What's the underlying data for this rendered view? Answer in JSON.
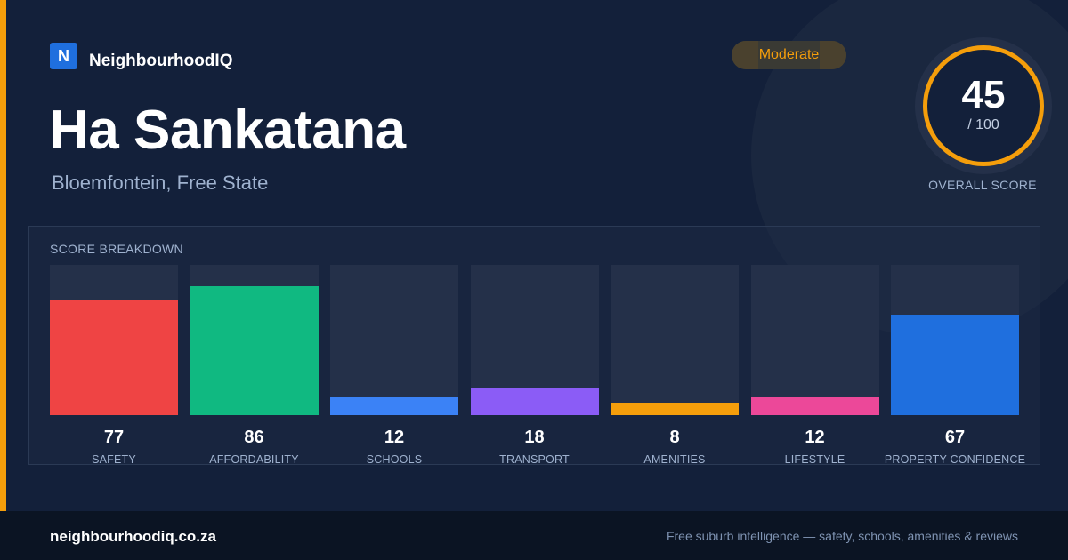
{
  "brand": {
    "logo_letter": "N",
    "name": "NeighbourhoodIQ"
  },
  "suburb": {
    "name": "Ha Sankatana",
    "location": "Bloemfontein, Free State"
  },
  "rating": {
    "label": "Moderate"
  },
  "overall_score": {
    "value": "45",
    "max": "/ 100",
    "caption": "OVERALL SCORE"
  },
  "breakdown": {
    "heading": "SCORE BREAKDOWN",
    "categories": [
      {
        "label": "SAFETY",
        "score": 77,
        "color": "#ef4444"
      },
      {
        "label": "AFFORDABILITY",
        "score": 86,
        "color": "#10b981"
      },
      {
        "label": "SCHOOLS",
        "score": 12,
        "color": "#3b82f6"
      },
      {
        "label": "TRANSPORT",
        "score": 18,
        "color": "#8b5cf6"
      },
      {
        "label": "AMENITIES",
        "score": 8,
        "color": "#f59e0b"
      },
      {
        "label": "LIFESTYLE",
        "score": 12,
        "color": "#ec4899"
      },
      {
        "label": "PROPERTY CONFIDENCE",
        "score": 67,
        "color": "#1f6fde"
      }
    ]
  },
  "footer": {
    "domain": "neighbourhoodiq.co.za",
    "tagline": "Free suburb intelligence — safety, schools, amenities & reviews"
  },
  "colors": {
    "accent": "#f59e0b",
    "background": "#13203a",
    "brand": "#1f6fde"
  }
}
